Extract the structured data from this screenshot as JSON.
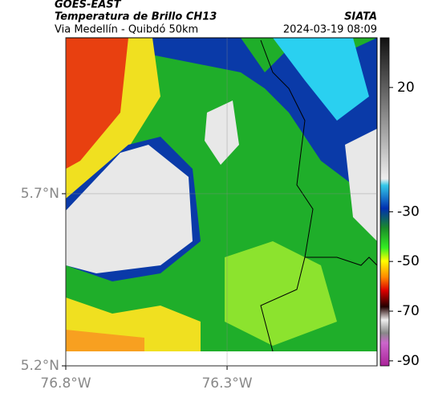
{
  "header": {
    "satellite": "GOES-EAST",
    "product": "Temperatura de Brillo CH13",
    "region": "Via Medellín - Quibdó 50km",
    "agency": "SIATA",
    "timestamp": "2024-03-19 08:09"
  },
  "map": {
    "xlim": [
      -76.8,
      -75.835
    ],
    "ylim": [
      5.2,
      6.153
    ],
    "xticks": [
      {
        "value": -76.8,
        "label": "76.8°W"
      },
      {
        "value": -76.3,
        "label": "76.3°W"
      }
    ],
    "yticks": [
      {
        "value": 5.2,
        "label": "5.2°N"
      },
      {
        "value": 5.7,
        "label": "5.7°N"
      }
    ],
    "grid": true
  },
  "colorbar": {
    "lim": [
      -92,
      40
    ],
    "ticks": [
      20,
      -30,
      -50,
      -70,
      -90
    ]
  }
}
